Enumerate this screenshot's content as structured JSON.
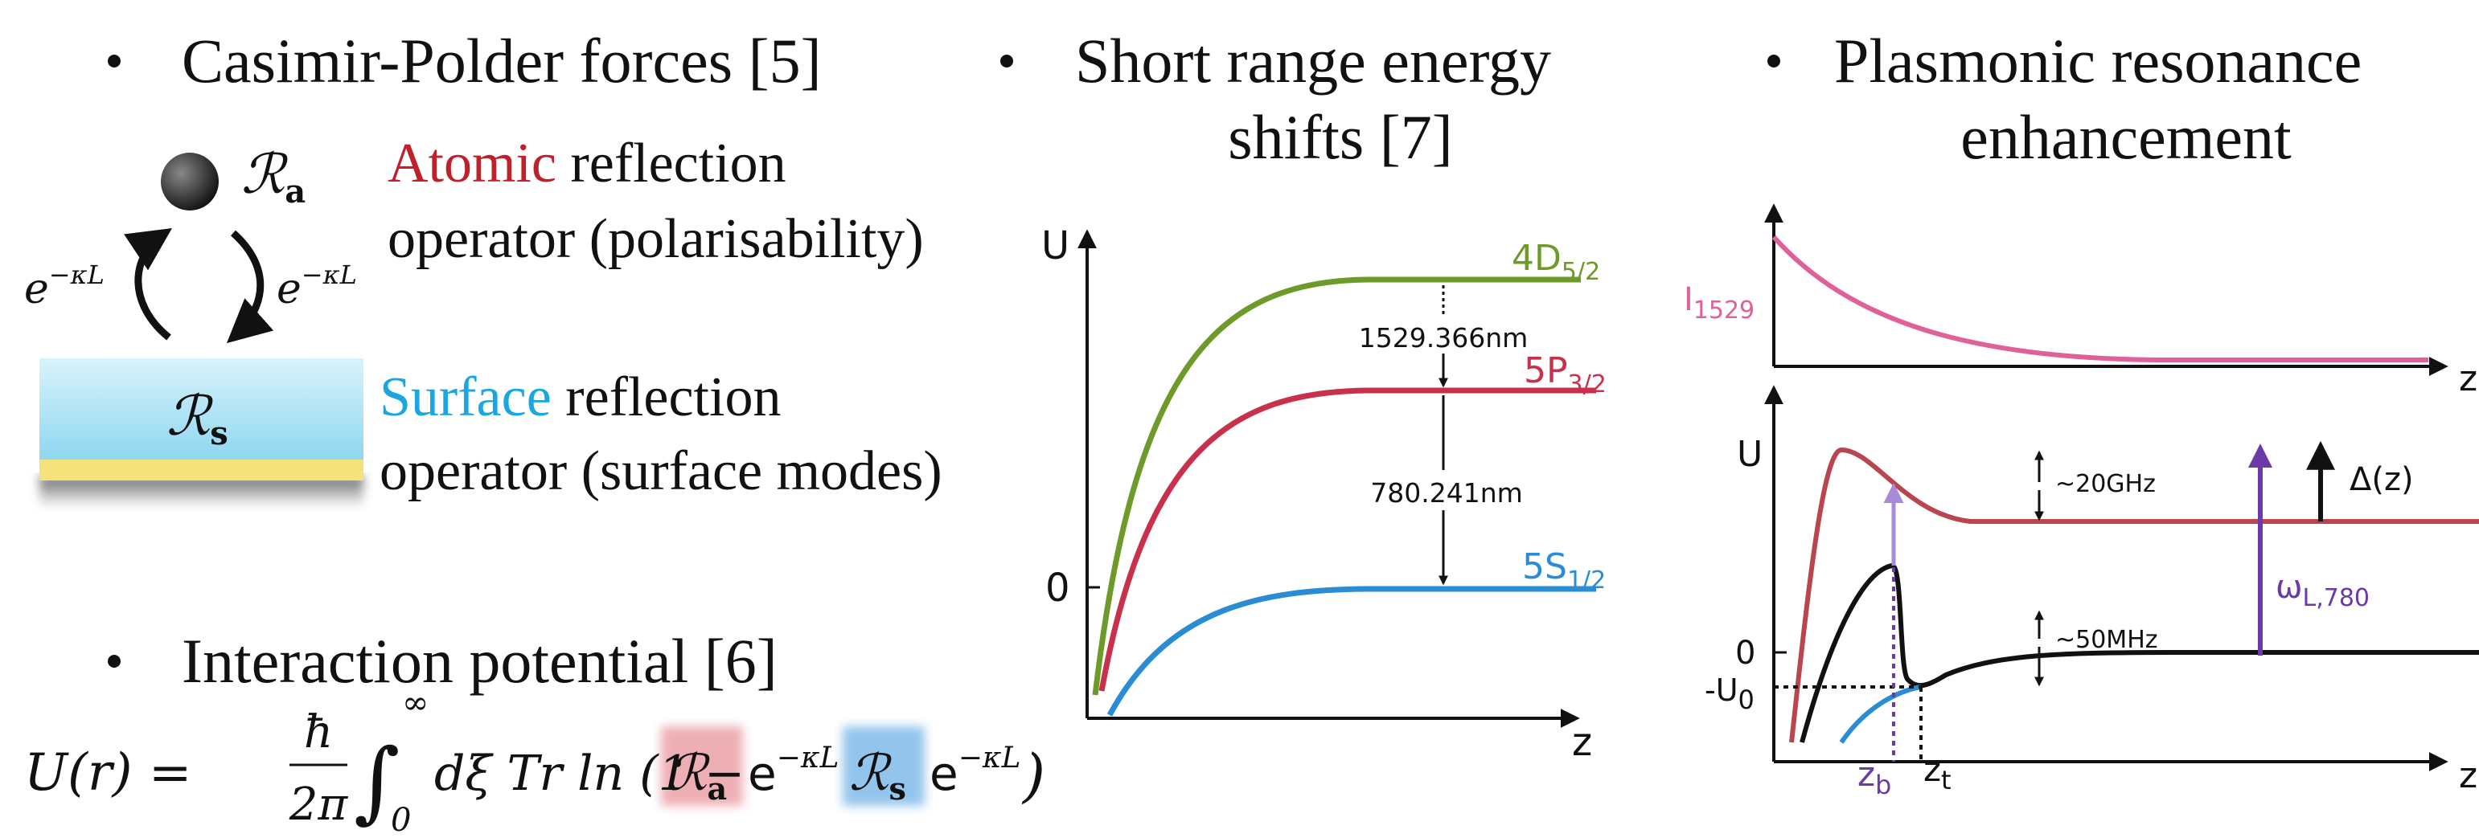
{
  "left": {
    "bullet_casimir": "Casimir-Polder forces [5]",
    "atom_symbol": "ℛ",
    "atom_sub": "a",
    "atomic_highlight": "Atomic",
    "atomic_rest": " reflection",
    "atomic_line2": "operator (polarisability)",
    "arrow_labels": [
      {
        "base": "e",
        "exponent": "−κL"
      },
      {
        "base": "e",
        "exponent": "−κL"
      }
    ],
    "surface_symbol": "ℛ",
    "surface_sub": "s",
    "surface_highlight": "Surface",
    "surface_rest": " reflection",
    "surface_line2": "operator (surface modes)",
    "bullet_interaction": "Interaction potential [6]",
    "formula": {
      "lhs": "U(r) =",
      "numerator": "ħ",
      "denominator": "2π",
      "integral": "∫",
      "upper": "∞",
      "lower": "0",
      "body": "dξ Tr ln (1 −",
      "ra": "ℛ",
      "ra_sub": "a",
      "e1": "e",
      "e1_exp": "−κL",
      "rs": "ℛ",
      "rs_sub": "s",
      "e2": "e",
      "e2_exp": "−κL",
      "close": ")"
    }
  },
  "middle": {
    "title_line1": "Short range energy",
    "title_line2": "shifts [7]",
    "y_axis_label": "U",
    "x_axis_label": "z",
    "zero_label": "0",
    "levels": [
      {
        "main": "4D",
        "sub": "5/2"
      },
      {
        "main": "5P",
        "sub": "3/2"
      },
      {
        "main": "5S",
        "sub": "1/2"
      }
    ],
    "wavelengths": [
      "1529.366nm",
      "780.241nm"
    ]
  },
  "right": {
    "title_line1": "Plasmonic resonance",
    "title_line2": "enhancement",
    "intensity_main": "I",
    "intensity_sub": "1529",
    "upper_x_label": "z",
    "lower_y_label": "U",
    "lower_x_label": "z",
    "zero_label": "0",
    "u0_main": "-U",
    "u0_sub": "0",
    "ghz_label": "~20GHz",
    "mhz_label": "~50MHz",
    "omega_main": "ω",
    "omega_sub": "L,780",
    "delta_label": "Δ(z)",
    "zb_main": "z",
    "zb_sub": "b",
    "zt_main": "z",
    "zt_sub": "t"
  }
}
